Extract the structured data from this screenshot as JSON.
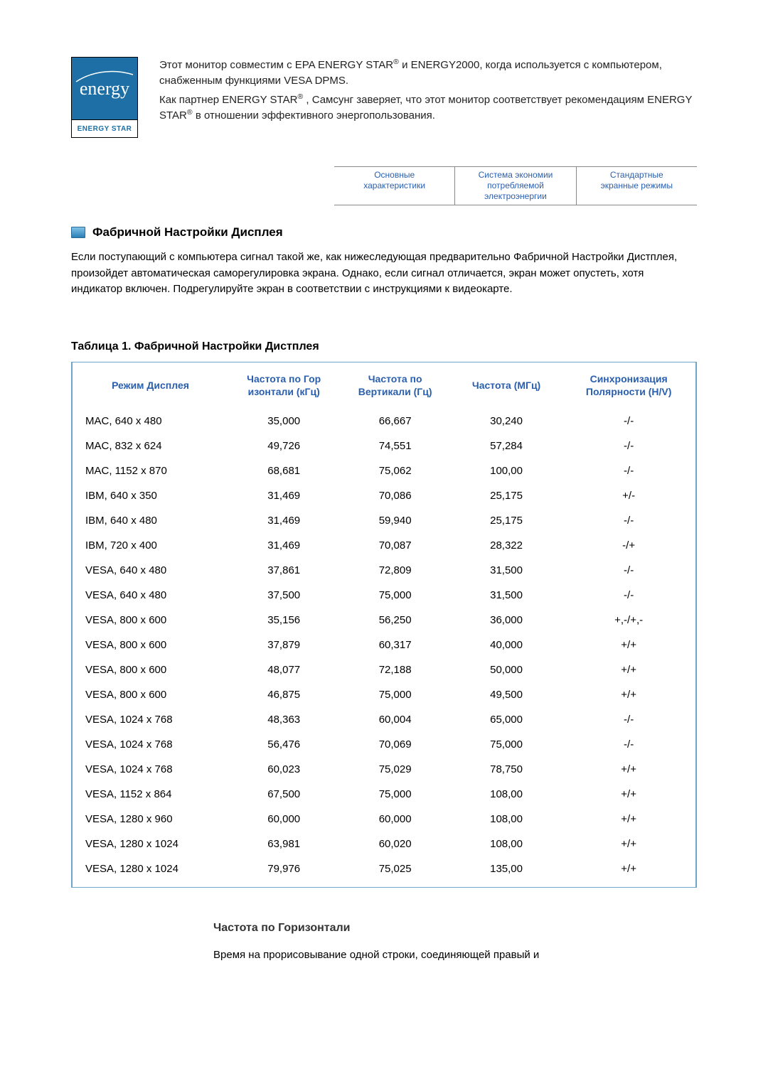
{
  "colors": {
    "page_background": "#ffffff",
    "text": "#000000",
    "link_blue": "#2a5fae",
    "table_border": "#6ea6c9",
    "logo_bg": "#1d6fa5"
  },
  "typography": {
    "body_fontsize_pt": 11,
    "heading_fontsize_pt": 12,
    "table_header_fontsize_pt": 10.5,
    "font_family": "Arial"
  },
  "logo": {
    "script_text": "energy",
    "label": "ENERGY STAR"
  },
  "intro": {
    "line1a": "Этот монитор совместим с EPA ENERGY STAR",
    "line1b": " и ENERGY2000, когда используется с компьютером, снабженным функциями VESA DPMS.",
    "line2a": "Как партнер ENERGY STAR",
    "line2b": " , Самсунг заверяет, что этот монитор соответствует рекомендациям ENERGY STAR",
    "line2c": " в отношении эффективного энергопользования."
  },
  "tabs": {
    "t1_l1": "Основные",
    "t1_l2": "характеристики",
    "t2_l1": "Система экономии",
    "t2_l2": "потребляемой электроэнергии",
    "t3_l1": "Стандартные",
    "t3_l2": "экранные режимы"
  },
  "section_heading": "Фабричной Настройки Дисплея",
  "section_body": "Если поступающий с компьютера сигнал такой же, как нижеследующая предварительно Фабричной Настройки Дистплея, произойдет автоматическая саморегулировка экрана. Однако, если сигнал отличается, экран может опустеть, хотя индикатор включен. Подрегулируйте экран в соответствии с инструкциями к видеокарте.",
  "table_title": "Таблица 1. Фабричной Настройки Дистплея",
  "table": {
    "columns": [
      "Режим Дисплея",
      "Частота по Гор изонтали (кГц)",
      "Частота по Вертикали (Гц)",
      "Частота (МГц)",
      "Синхронизация Полярности (H/V)"
    ],
    "rows": [
      [
        "MAC, 640 x 480",
        "35,000",
        "66,667",
        "30,240",
        "-/-"
      ],
      [
        "MAC, 832 x 624",
        "49,726",
        "74,551",
        "57,284",
        "-/-"
      ],
      [
        "MAC, 1152 x 870",
        "68,681",
        "75,062",
        "100,00",
        "-/-"
      ],
      [
        "IBM, 640 x 350",
        "31,469",
        "70,086",
        "25,175",
        "+/-"
      ],
      [
        "IBM, 640 x 480",
        "31,469",
        "59,940",
        "25,175",
        "-/-"
      ],
      [
        "IBM, 720 x 400",
        "31,469",
        "70,087",
        "28,322",
        "-/+"
      ],
      [
        "VESA, 640 x 480",
        "37,861",
        "72,809",
        "31,500",
        "-/-"
      ],
      [
        "VESA, 640 x 480",
        "37,500",
        "75,000",
        "31,500",
        "-/-"
      ],
      [
        "VESA, 800 x 600",
        "35,156",
        "56,250",
        "36,000",
        "+,-/+,-"
      ],
      [
        "VESA, 800 x 600",
        "37,879",
        "60,317",
        "40,000",
        "+/+"
      ],
      [
        "VESA, 800 x 600",
        "48,077",
        "72,188",
        "50,000",
        "+/+"
      ],
      [
        "VESA, 800 x 600",
        "46,875",
        "75,000",
        "49,500",
        "+/+"
      ],
      [
        "VESA, 1024 x 768",
        "48,363",
        "60,004",
        "65,000",
        "-/-"
      ],
      [
        "VESA, 1024 x 768",
        "56,476",
        "70,069",
        "75,000",
        "-/-"
      ],
      [
        "VESA, 1024 x 768",
        "60,023",
        "75,029",
        "78,750",
        "+/+"
      ],
      [
        "VESA, 1152 x 864",
        "67,500",
        "75,000",
        "108,00",
        "+/+"
      ],
      [
        "VESA, 1280 x 960",
        "60,000",
        "60,000",
        "108,00",
        "+/+"
      ],
      [
        "VESA, 1280 x 1024",
        "63,981",
        "60,020",
        "108,00",
        "+/+"
      ],
      [
        "VESA, 1280 x 1024",
        "79,976",
        "75,025",
        "135,00",
        "+/+"
      ]
    ]
  },
  "bottom": {
    "heading": "Частота по Горизонтали",
    "text": "Время на прорисовывание одной строки, соединяющей правый и"
  }
}
